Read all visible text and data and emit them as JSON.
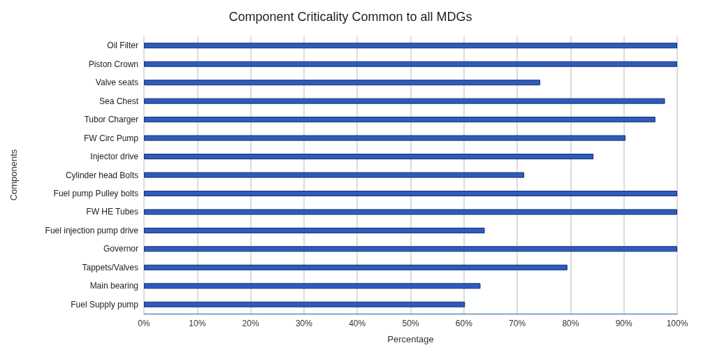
{
  "chart_data": {
    "type": "bar",
    "orientation": "horizontal",
    "title": "Component Criticality Common to all MDGs",
    "xlabel": "Percentage",
    "ylabel": "Components",
    "categories": [
      "Oil Filter",
      "Piston Crown",
      "Valve seats",
      "Sea Chest",
      "Tubor Charger",
      "FW Circ Pump",
      "Injector drive",
      "Cylinder head Bolts",
      "Fuel pump Pulley bolts",
      "FW HE Tubes",
      "Fuel injection pump drive",
      "Governor",
      "Tappets/Valves",
      "Main bearing",
      "Fuel Supply pump"
    ],
    "values": [
      100,
      100,
      74.3,
      97.7,
      95.9,
      90.3,
      84.3,
      71.3,
      100,
      100,
      63.9,
      100,
      79.4,
      63.1,
      60.2
    ],
    "color": "#2f5bbd",
    "xlim": [
      0,
      100
    ],
    "xticks": [
      {
        "value": 0,
        "label": "0%"
      },
      {
        "value": 10,
        "label": "10%"
      },
      {
        "value": 20,
        "label": "20%"
      },
      {
        "value": 30,
        "label": "30%"
      },
      {
        "value": 40,
        "label": "40%"
      },
      {
        "value": 50,
        "label": "50%"
      },
      {
        "value": 60,
        "label": "60%"
      },
      {
        "value": 70,
        "label": "70%"
      },
      {
        "value": 80,
        "label": "80%"
      },
      {
        "value": 90,
        "label": "90%"
      },
      {
        "value": 100,
        "label": "100%"
      }
    ],
    "grid": "x"
  }
}
